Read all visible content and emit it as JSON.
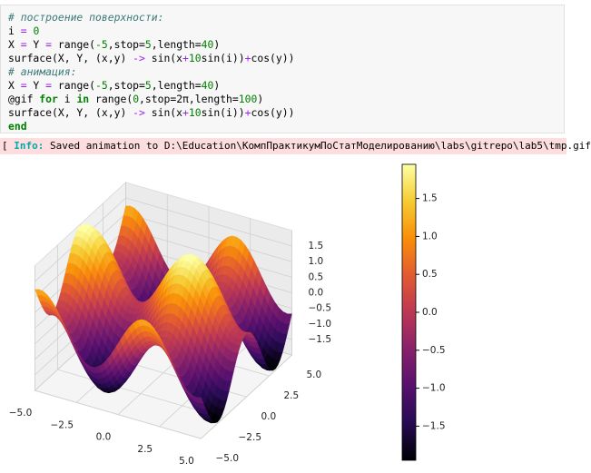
{
  "code": {
    "lines": [
      [
        {
          "text": "# построение поверхности:",
          "color": "#3d7a7a",
          "italic": true
        }
      ],
      [
        {
          "text": "i ",
          "color": "#000"
        },
        {
          "text": "=",
          "color": "#a020f0"
        },
        {
          "text": " ",
          "color": "#000"
        },
        {
          "text": "0",
          "color": "#008000"
        }
      ],
      [
        {
          "text": "X ",
          "color": "#000"
        },
        {
          "text": "=",
          "color": "#a020f0"
        },
        {
          "text": " Y ",
          "color": "#000"
        },
        {
          "text": "=",
          "color": "#a020f0"
        },
        {
          "text": " range(",
          "color": "#000"
        },
        {
          "text": "-5",
          "color": "#008000"
        },
        {
          "text": ",stop=",
          "color": "#000"
        },
        {
          "text": "5",
          "color": "#008000"
        },
        {
          "text": ",length=",
          "color": "#000"
        },
        {
          "text": "40",
          "color": "#008000"
        },
        {
          "text": ")",
          "color": "#000"
        }
      ],
      [
        {
          "text": "surface(X, Y, (x,y) ",
          "color": "#000"
        },
        {
          "text": "->",
          "color": "#a020f0"
        },
        {
          "text": " sin(x",
          "color": "#000"
        },
        {
          "text": "+",
          "color": "#a020f0"
        },
        {
          "text": "10",
          "color": "#008000"
        },
        {
          "text": "sin(i))",
          "color": "#000"
        },
        {
          "text": "+",
          "color": "#a020f0"
        },
        {
          "text": "cos(y))",
          "color": "#000"
        }
      ],
      [
        {
          "text": "# анимация:",
          "color": "#3d7a7a",
          "italic": true
        }
      ],
      [
        {
          "text": "X ",
          "color": "#000"
        },
        {
          "text": "=",
          "color": "#a020f0"
        },
        {
          "text": " Y ",
          "color": "#000"
        },
        {
          "text": "=",
          "color": "#a020f0"
        },
        {
          "text": " range(",
          "color": "#000"
        },
        {
          "text": "-5",
          "color": "#008000"
        },
        {
          "text": ",stop=",
          "color": "#000"
        },
        {
          "text": "5",
          "color": "#008000"
        },
        {
          "text": ",length=",
          "color": "#000"
        },
        {
          "text": "40",
          "color": "#008000"
        },
        {
          "text": ")",
          "color": "#000"
        }
      ],
      [
        {
          "text": "@gif ",
          "color": "#000"
        },
        {
          "text": "for",
          "color": "#008000",
          "bold": true
        },
        {
          "text": " i ",
          "color": "#000"
        },
        {
          "text": "in",
          "color": "#008000",
          "bold": true
        },
        {
          "text": " range(",
          "color": "#000"
        },
        {
          "text": "0",
          "color": "#008000"
        },
        {
          "text": ",stop=2π,length=",
          "color": "#000"
        },
        {
          "text": "100",
          "color": "#008000"
        },
        {
          "text": ")",
          "color": "#000"
        }
      ],
      [
        {
          "text": "surface(X, Y, (x,y) ",
          "color": "#000"
        },
        {
          "text": "->",
          "color": "#a020f0"
        },
        {
          "text": " sin(x",
          "color": "#000"
        },
        {
          "text": "+",
          "color": "#a020f0"
        },
        {
          "text": "10",
          "color": "#008000"
        },
        {
          "text": "sin(i))",
          "color": "#000"
        },
        {
          "text": "+",
          "color": "#a020f0"
        },
        {
          "text": "cos(y))",
          "color": "#000"
        }
      ],
      [
        {
          "text": "end",
          "color": "#008000",
          "bold": true
        }
      ]
    ]
  },
  "info": {
    "prefix": "[ ",
    "label": "Info:",
    "message": " Saved animation to D:\\Education\\КомпПрактикумПоСтатМоделированию\\labs\\gitrepo\\lab5\\tmp.gif"
  },
  "plot": {
    "xticks": [
      {
        "value": -5,
        "label": "−5.0"
      },
      {
        "value": -2.5,
        "label": "−2.5"
      },
      {
        "value": 0,
        "label": "0.0"
      },
      {
        "value": 2.5,
        "label": "2.5"
      },
      {
        "value": 5,
        "label": "5.0"
      }
    ],
    "yticks": [
      {
        "value": -5,
        "label": "−5.0"
      },
      {
        "value": -2.5,
        "label": "−2.5"
      },
      {
        "value": 0,
        "label": "0.0"
      },
      {
        "value": 2.5,
        "label": "2.5"
      },
      {
        "value": 5,
        "label": "5.0"
      }
    ],
    "zticks": [
      {
        "value": -1.5,
        "label": "−1.5"
      },
      {
        "value": -1,
        "label": "−1.0"
      },
      {
        "value": -0.5,
        "label": "−0.5"
      },
      {
        "value": 0,
        "label": "0.0"
      },
      {
        "value": 0.5,
        "label": "0.5"
      },
      {
        "value": 1,
        "label": "1.0"
      },
      1.5
    ],
    "xlim": [
      -5,
      5
    ],
    "ylim": [
      -5,
      5
    ],
    "zlim": [
      -2,
      2
    ],
    "colorbar": {
      "clim": [
        -1.95,
        1.95
      ],
      "ticks": [
        {
          "value": -1.5,
          "label": "−1.5"
        },
        {
          "value": -1,
          "label": "−1.0"
        },
        {
          "value": -0.5,
          "label": "−0.5"
        },
        {
          "value": 0,
          "label": "0.0"
        },
        {
          "value": 0.5,
          "label": "0.5"
        },
        {
          "value": 1,
          "label": "1.0"
        },
        1.5
      ]
    }
  }
}
